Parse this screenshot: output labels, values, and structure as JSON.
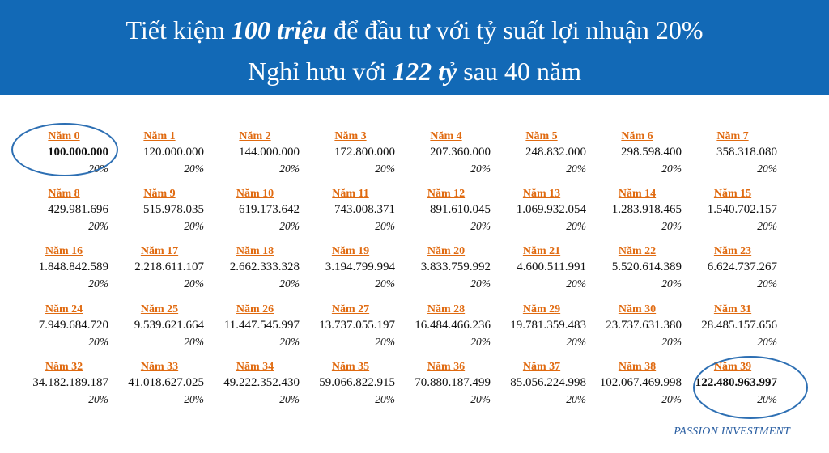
{
  "header": {
    "line1": {
      "a": "Tiết kiệm ",
      "b": "100 triệu",
      "c": " để đầu tư với tỷ suất lợi nhuận 20%"
    },
    "line2": {
      "a": "Nghỉ hưu với ",
      "b": "122 tỷ",
      "c": " sau 40 năm"
    }
  },
  "rate_label": "20%",
  "years": [
    {
      "label": "Năm 0",
      "value": "100.000.000"
    },
    {
      "label": "Năm 1",
      "value": "120.000.000"
    },
    {
      "label": "Năm 2",
      "value": "144.000.000"
    },
    {
      "label": "Năm 3",
      "value": "172.800.000"
    },
    {
      "label": "Năm 4",
      "value": "207.360.000"
    },
    {
      "label": "Năm 5",
      "value": "248.832.000"
    },
    {
      "label": "Năm 6",
      "value": "298.598.400"
    },
    {
      "label": "Năm 7",
      "value": "358.318.080"
    },
    {
      "label": "Năm 8",
      "value": "429.981.696"
    },
    {
      "label": "Năm 9",
      "value": "515.978.035"
    },
    {
      "label": "Năm 10",
      "value": "619.173.642"
    },
    {
      "label": "Năm 11",
      "value": "743.008.371"
    },
    {
      "label": "Năm 12",
      "value": "891.610.045"
    },
    {
      "label": "Năm 13",
      "value": "1.069.932.054"
    },
    {
      "label": "Năm 14",
      "value": "1.283.918.465"
    },
    {
      "label": "Năm 15",
      "value": "1.540.702.157"
    },
    {
      "label": "Năm 16",
      "value": "1.848.842.589"
    },
    {
      "label": "Năm 17",
      "value": "2.218.611.107"
    },
    {
      "label": "Năm 18",
      "value": "2.662.333.328"
    },
    {
      "label": "Năm 19",
      "value": "3.194.799.994"
    },
    {
      "label": "Năm 20",
      "value": "3.833.759.992"
    },
    {
      "label": "Năm 21",
      "value": "4.600.511.991"
    },
    {
      "label": "Năm 22",
      "value": "5.520.614.389"
    },
    {
      "label": "Năm 23",
      "value": "6.624.737.267"
    },
    {
      "label": "Năm 24",
      "value": "7.949.684.720"
    },
    {
      "label": "Năm 25",
      "value": "9.539.621.664"
    },
    {
      "label": "Năm 26",
      "value": "11.447.545.997"
    },
    {
      "label": "Năm 27",
      "value": "13.737.055.197"
    },
    {
      "label": "Năm 28",
      "value": "16.484.466.236"
    },
    {
      "label": "Năm 29",
      "value": "19.781.359.483"
    },
    {
      "label": "Năm 30",
      "value": "23.737.631.380"
    },
    {
      "label": "Năm 31",
      "value": "28.485.157.656"
    },
    {
      "label": "Năm 32",
      "value": "34.182.189.187"
    },
    {
      "label": "Năm 33",
      "value": "41.018.627.025"
    },
    {
      "label": "Năm 34",
      "value": "49.222.352.430"
    },
    {
      "label": "Năm 35",
      "value": "59.066.822.915"
    },
    {
      "label": "Năm 36",
      "value": "70.880.187.499"
    },
    {
      "label": "Năm 37",
      "value": "85.056.224.998"
    },
    {
      "label": "Năm 38",
      "value": "102.067.469.998"
    },
    {
      "label": "Năm 39",
      "value": "122.480.963.997"
    }
  ],
  "highlighted_years": [
    0,
    39
  ],
  "colors": {
    "banner": "#1269b6",
    "year_label": "#e06a10",
    "oval": "#2d6fb3",
    "footer": "#2b5fa2"
  },
  "footer": "PASSION INVESTMENT"
}
